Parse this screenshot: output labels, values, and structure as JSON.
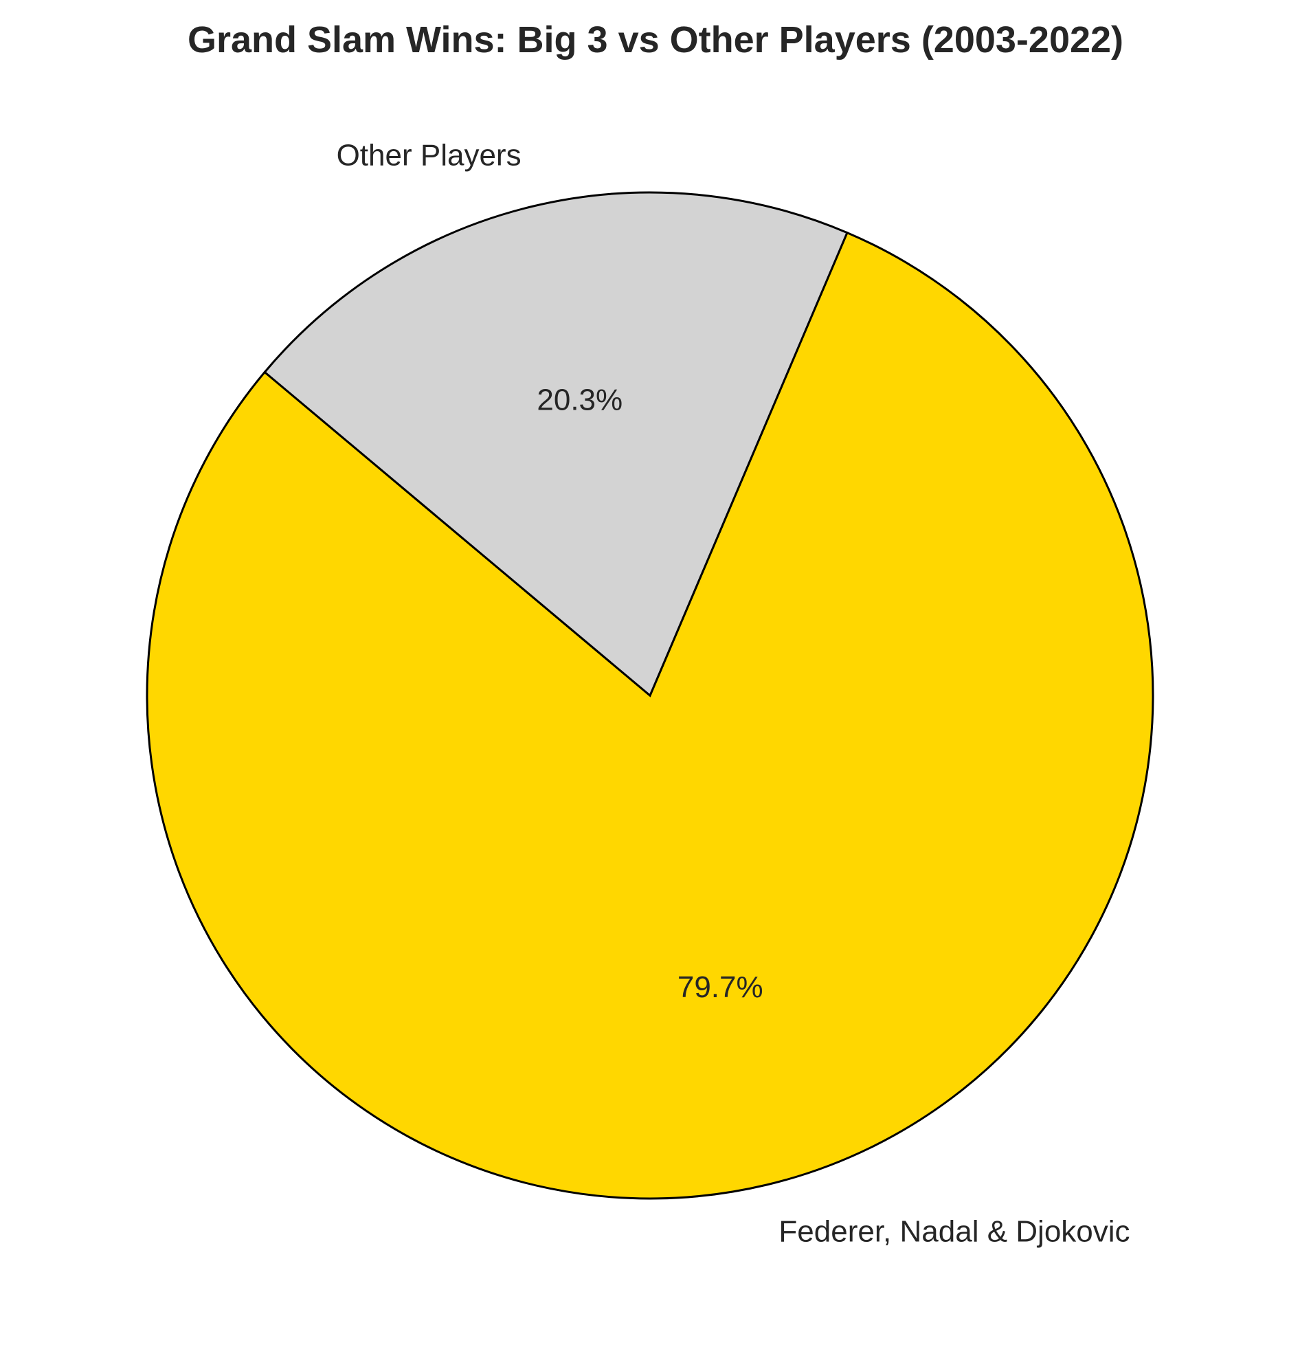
{
  "chart_data": {
    "type": "pie",
    "title": "Grand Slam Wins: Big 3 vs Other Players (2003-2022)",
    "slices": [
      {
        "label": "Federer, Nadal & Djokovic",
        "value": 79.7,
        "pct_label": "79.7%",
        "color": "#FFD700"
      },
      {
        "label": "Other Players",
        "value": 20.3,
        "pct_label": "20.3%",
        "color": "#D3D3D3"
      }
    ],
    "edge_color": "#000000",
    "legend": "none"
  }
}
